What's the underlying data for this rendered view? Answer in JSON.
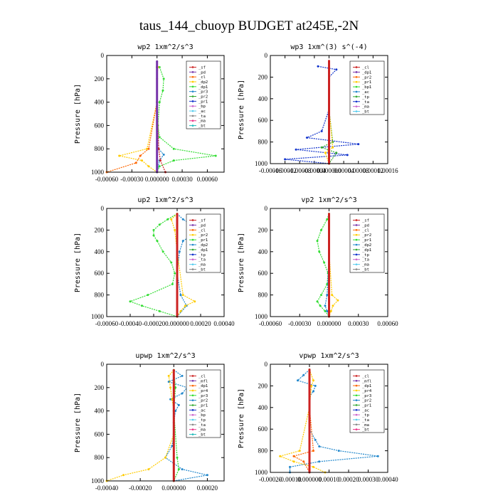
{
  "figure_title": "taus_144_cbuoyp  BUDGET at245E,-2N",
  "chart_data": [
    {
      "type": "line",
      "title": "wp2   1xm^2/s^3",
      "ylabel": "Pressure [hPa]",
      "ylim": [
        1000,
        0
      ],
      "yticks": [
        "0",
        "200",
        "400",
        "600",
        "800",
        "1000"
      ],
      "xlim": [
        -0.0006,
        0.0008
      ],
      "xtick_values": [
        -0.0006,
        -0.0003,
        0.0,
        0.0003,
        0.0006
      ],
      "xtick_labels": [
        "-0.00060",
        "-0.00030",
        "0.000000",
        "0.00030",
        "0.00060"
      ],
      "legend": [
        "_sf",
        "_pd",
        "_cl",
        "_dp2",
        "_dp1",
        "_pr3",
        "_pr2",
        "_pr1",
        "_bp",
        "_ac",
        "_ta",
        "_ma",
        "_bt"
      ],
      "series": [
        {
          "name": "_pr1",
          "color": "#33dd33",
          "p": [
            100,
            200,
            300,
            400,
            600,
            700,
            800,
            860,
            900,
            950,
            1000
          ],
          "v": [
            3e-05,
            8e-05,
            7e-05,
            3e-05,
            1e-05,
            3e-05,
            0.0002,
            0.0007,
            0.0002,
            3e-05,
            0
          ]
        },
        {
          "name": "_pr2",
          "color": "#ffcc00",
          "p": [
            100,
            200,
            400,
            800,
            860,
            900,
            950,
            1000
          ],
          "v": [
            1e-05,
            0,
            0,
            -0.00012,
            -0.00045,
            -0.00018,
            -0.0001,
            0
          ]
        },
        {
          "name": "_dp1",
          "color": "#ff6600",
          "p": [
            100,
            400,
            800,
            860,
            920,
            1000
          ],
          "v": [
            0,
            0,
            -0.0001,
            -0.0002,
            -0.00025,
            -0.0006
          ]
        },
        {
          "name": "_bp",
          "color": "#2288cc",
          "p": [
            100,
            400,
            800,
            850,
            900,
            1000
          ],
          "v": [
            0,
            0,
            2e-05,
            8e-05,
            3e-05,
            0
          ]
        },
        {
          "name": "_ta",
          "color": "#cc2222",
          "p": [
            100,
            400,
            800,
            900,
            1000
          ],
          "v": [
            0,
            0,
            2e-05,
            4e-05,
            0.0001
          ]
        },
        {
          "name": "_bt",
          "color": "#7733aa",
          "p": [
            50,
            1000
          ],
          "v": [
            0,
            0
          ]
        }
      ]
    },
    {
      "type": "line",
      "title": "wp3   1xm^(3) s^(-4)",
      "ylabel": "Pressure [hPa]",
      "ylim": [
        1000,
        0
      ],
      "yticks": [
        "0",
        "200",
        "400",
        "600",
        "800",
        "1000"
      ],
      "xlim": [
        -0.00016,
        0.00016
      ],
      "xtick_values": [
        -0.00016,
        -0.00012,
        -8e-05,
        -4e-05,
        0.0,
        4e-05,
        8e-05,
        0.00012,
        0.00016
      ],
      "xtick_labels": [
        "-0.00016",
        "-0.00012",
        "-0.00008",
        "-0.00004",
        "0.000000",
        "0.00004",
        "0.00008",
        "0.00012",
        "0.00016"
      ],
      "legend": [
        "_cl",
        "_dp1",
        "_pr2",
        "_pr1",
        "_bp1",
        "_ac",
        "_tp",
        "_ta",
        "_ma",
        "_bt"
      ],
      "series": [
        {
          "name": "_tp",
          "color": "#1133cc",
          "p": [
            100,
            130,
            200,
            300,
            500,
            700,
            760,
            820,
            870,
            920,
            960,
            1000
          ],
          "v": [
            -3e-05,
            2e-05,
            0,
            0,
            0,
            -2e-05,
            -6e-05,
            8e-05,
            -9e-05,
            5e-05,
            -0.00012,
            0
          ]
        },
        {
          "name": "_bp1",
          "color": "#33aa33",
          "p": [
            100,
            500,
            800,
            850,
            900,
            1000
          ],
          "v": [
            0,
            0,
            1e-05,
            -2e-05,
            2e-05,
            0
          ]
        },
        {
          "name": "_pr2",
          "color": "#ffcc00",
          "p": [
            100,
            500,
            850,
            900,
            1000
          ],
          "v": [
            0,
            0,
            1e-05,
            -1e-05,
            0
          ]
        },
        {
          "name": "_cl",
          "color": "#cc2222",
          "p": [
            50,
            1000
          ],
          "v": [
            0,
            0
          ]
        }
      ]
    },
    {
      "type": "line",
      "title": "up2   1xm^2/s^3",
      "ylabel": "Pressure [hPa]",
      "ylim": [
        1000,
        0
      ],
      "yticks": [
        "0",
        "200",
        "400",
        "600",
        "800",
        "1000"
      ],
      "xlim": [
        -0.0006,
        0.0004
      ],
      "xtick_values": [
        -0.0006,
        -0.0004,
        -0.0002,
        0.0,
        0.0002,
        0.0004
      ],
      "xtick_labels": [
        "-0.00060",
        "-0.00040",
        "-0.00020",
        "0.000000",
        "0.00020",
        "0.00040"
      ],
      "legend": [
        "_sf",
        "_pd",
        "_cl",
        "_pr2",
        "_pr1",
        "_dp2",
        "_dp1",
        "_tp",
        "_ta",
        "_ma",
        "_bt"
      ],
      "series": [
        {
          "name": "_pr1",
          "color": "#33dd33",
          "p": [
            50,
            100,
            150,
            200,
            250,
            300,
            400,
            500,
            600,
            700,
            800,
            860,
            900,
            950,
            1000
          ],
          "v": [
            0,
            -8e-05,
            -0.00015,
            -0.0002,
            -0.0002,
            -0.00017,
            -0.00012,
            -5e-05,
            -2e-05,
            -4e-05,
            -0.00025,
            -0.0004,
            -0.0003,
            -0.00015,
            0
          ]
        },
        {
          "name": "_tp",
          "color": "#2288cc",
          "p": [
            50,
            100,
            150,
            200,
            300,
            400,
            600,
            800,
            900,
            1000
          ],
          "v": [
            0,
            5e-05,
            0.00012,
            0.0002,
            5e-05,
            2e-05,
            0,
            3e-05,
            8e-05,
            0
          ]
        },
        {
          "name": "_pr2",
          "color": "#ffcc00",
          "p": [
            50,
            100,
            200,
            400,
            800,
            860,
            900,
            950,
            1000
          ],
          "v": [
            0,
            -5e-05,
            -2e-05,
            0,
            5e-05,
            0.00015,
            7e-05,
            3e-05,
            0
          ]
        },
        {
          "name": "_ta",
          "color": "#cc2222",
          "p": [
            50,
            1000
          ],
          "v": [
            0,
            0
          ]
        }
      ]
    },
    {
      "type": "line",
      "title": "vp2   1xm^2/s^3",
      "ylabel": "Pressure [hPa]",
      "ylim": [
        1000,
        0
      ],
      "yticks": [
        "0",
        "200",
        "400",
        "600",
        "800",
        "1000"
      ],
      "xlim": [
        -0.0006,
        0.0006
      ],
      "xtick_values": [
        -0.0006,
        -0.0003,
        0.0,
        0.0003,
        0.0006
      ],
      "xtick_labels": [
        "-0.00060",
        "-0.00030",
        "0.000000",
        "0.00030",
        "0.00060"
      ],
      "legend": [
        "_sf",
        "_pd",
        "_cl",
        "_pr2",
        "_pr1",
        "_dp2",
        "_dp1",
        "_tp",
        "_ta",
        "_ma",
        "_bt"
      ],
      "series": [
        {
          "name": "_pr1",
          "color": "#33dd33",
          "p": [
            50,
            100,
            200,
            300,
            400,
            500,
            600,
            700,
            800,
            860,
            900,
            950,
            1000
          ],
          "v": [
            0,
            -2e-05,
            -8e-05,
            -0.00012,
            -0.0001,
            -5e-05,
            -1e-05,
            -2e-05,
            -8e-05,
            -0.00012,
            -9e-05,
            -4e-05,
            0
          ]
        },
        {
          "name": "_tp",
          "color": "#2288cc",
          "p": [
            50,
            200,
            400,
            800,
            900,
            950,
            1000
          ],
          "v": [
            0,
            0,
            0,
            -2e-05,
            -4e-05,
            -2e-05,
            0
          ]
        },
        {
          "name": "_pr2",
          "color": "#ffcc00",
          "p": [
            50,
            400,
            800,
            850,
            900,
            950,
            1000
          ],
          "v": [
            0,
            0,
            3e-05,
            9e-05,
            4e-05,
            2e-05,
            0
          ]
        },
        {
          "name": "_ta",
          "color": "#cc2222",
          "p": [
            50,
            1000
          ],
          "v": [
            0,
            0
          ]
        }
      ]
    },
    {
      "type": "line",
      "title": "upwp   1xm^2/s^3",
      "ylabel": "Pressure [hPa]",
      "ylim": [
        1000,
        0
      ],
      "yticks": [
        "0",
        "200",
        "400",
        "600",
        "800",
        "1000"
      ],
      "xlim": [
        -0.0004,
        0.0003
      ],
      "xtick_values": [
        -0.0004,
        -0.0002,
        0.0,
        0.0002
      ],
      "xtick_labels": [
        "-0.00040",
        "-0.00020",
        "0.000000",
        "0.00020"
      ],
      "legend": [
        "_cl",
        "_mfl",
        "_dp1",
        "_pr4",
        "_pr3",
        "_pr2",
        "_pr1",
        "_ac",
        "_bp",
        "_tp",
        "_ta",
        "_ma",
        "_bt"
      ],
      "series": [
        {
          "name": "_tp",
          "color": "#2288cc",
          "p": [
            50,
            100,
            150,
            200,
            250,
            300,
            350,
            400,
            500,
            600,
            700,
            800,
            850,
            900,
            950,
            1000
          ],
          "v": [
            0,
            5e-05,
            -3e-05,
            8e-05,
            5e-05,
            -2e-05,
            3e-05,
            1e-05,
            0,
            0,
            -1e-05,
            -5e-05,
            0,
            5e-05,
            0.0002,
            0
          ]
        },
        {
          "name": "_pr2",
          "color": "#ffcc00",
          "p": [
            50,
            100,
            200,
            300,
            400,
            600,
            800,
            900,
            950,
            1000
          ],
          "v": [
            0,
            -3e-05,
            -2e-05,
            -1e-05,
            0,
            0,
            -5e-05,
            -0.00015,
            -0.0003,
            -0.0004
          ]
        },
        {
          "name": "_pr1",
          "color": "#33dd33",
          "p": [
            50,
            200,
            400,
            800,
            900,
            1000
          ],
          "v": [
            0,
            1e-05,
            0,
            2e-05,
            3e-05,
            0
          ]
        },
        {
          "name": "_ac",
          "color": "#cc2222",
          "p": [
            50,
            1000
          ],
          "v": [
            0,
            0
          ]
        }
      ]
    },
    {
      "type": "line",
      "title": "vpwp   1xm^2/s^3",
      "ylabel": "Pressure [hPa]",
      "ylim": [
        1000,
        0
      ],
      "yticks": [
        "0",
        "200",
        "400",
        "600",
        "800",
        "1000"
      ],
      "xlim": [
        -0.0002,
        0.0004
      ],
      "xtick_values": [
        -0.0002,
        -0.0001,
        0.0,
        0.0001,
        0.0002,
        0.0003,
        0.0004
      ],
      "xtick_labels": [
        "-0.00020",
        "-0.00010",
        "0.000000",
        "0.00010",
        "0.00020",
        "0.00030",
        "0.00040"
      ],
      "legend": [
        "_cl",
        "_mfl",
        "_dp1",
        "_pr4",
        "_pr3",
        "_pr2",
        "_pr1",
        "_ac",
        "_tp",
        "_ta",
        "_ma",
        "_bt"
      ],
      "series": [
        {
          "name": "_tp",
          "color": "#2288cc",
          "p": [
            50,
            100,
            150,
            200,
            250,
            300,
            400,
            600,
            700,
            760,
            800,
            850,
            900,
            950,
            1000
          ],
          "v": [
            0,
            -3e-05,
            -6e-05,
            3e-05,
            2e-05,
            0,
            0,
            0,
            3e-05,
            5e-05,
            0.00015,
            0.00035,
            5e-05,
            -0.0001,
            -0.0001
          ]
        },
        {
          "name": "_pr2",
          "color": "#ffcc00",
          "p": [
            50,
            150,
            200,
            400,
            800,
            850,
            900,
            950,
            1000
          ],
          "v": [
            0,
            2e-05,
            1e-05,
            0,
            -5e-05,
            -0.00015,
            -8e-05,
            2e-05,
            8e-05
          ]
        },
        {
          "name": "_dp1",
          "color": "#ff6600",
          "p": [
            50,
            400,
            800,
            850,
            900,
            1000
          ],
          "v": [
            0,
            0,
            2e-05,
            -8e-05,
            -3e-05,
            0
          ]
        },
        {
          "name": "_mfl",
          "color": "#cc2222",
          "p": [
            50,
            1000
          ],
          "v": [
            0,
            0
          ]
        }
      ]
    }
  ]
}
